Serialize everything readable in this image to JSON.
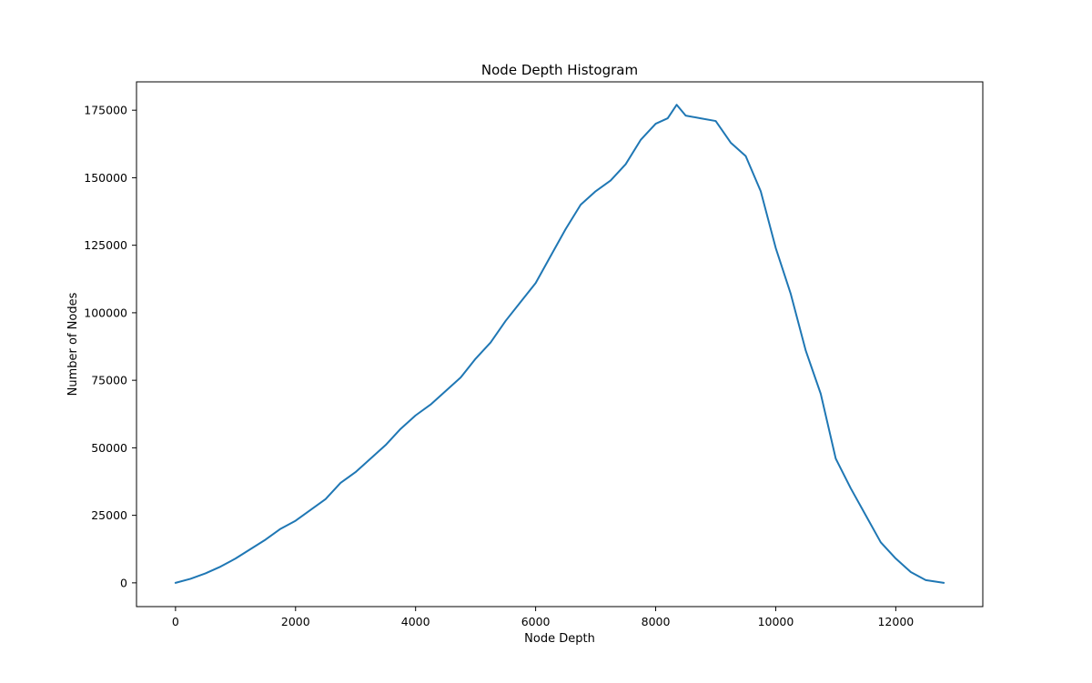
{
  "chart_data": {
    "type": "line",
    "title": "Node Depth Histogram",
    "xlabel": "Node Depth",
    "ylabel": "Number of Nodes",
    "xlim": [
      -650,
      13450
    ],
    "ylim": [
      -8800,
      185500
    ],
    "xticks": [
      0,
      2000,
      4000,
      6000,
      8000,
      10000,
      12000
    ],
    "yticks": [
      0,
      25000,
      50000,
      75000,
      100000,
      125000,
      150000,
      175000
    ],
    "grid": false,
    "legend": "none",
    "series": [
      {
        "color": "#1f77b4",
        "x": [
          0,
          250,
          500,
          750,
          1000,
          1250,
          1500,
          1750,
          2000,
          2250,
          2500,
          2750,
          3000,
          3250,
          3500,
          3750,
          4000,
          4250,
          4500,
          4750,
          5000,
          5250,
          5500,
          5750,
          6000,
          6250,
          6500,
          6750,
          7000,
          7250,
          7500,
          7750,
          8000,
          8200,
          8350,
          8500,
          8750,
          9000,
          9250,
          9500,
          9750,
          10000,
          10250,
          10500,
          10750,
          11000,
          11250,
          11500,
          11750,
          12000,
          12250,
          12500,
          12800
        ],
        "values": [
          0,
          1500,
          3500,
          6000,
          9000,
          12500,
          16000,
          20000,
          23000,
          27000,
          31000,
          37000,
          41000,
          46000,
          51000,
          57000,
          62000,
          66000,
          71000,
          76000,
          83000,
          89000,
          97000,
          104000,
          111000,
          121000,
          131000,
          140000,
          145000,
          149000,
          155000,
          164000,
          170000,
          172000,
          177000,
          173000,
          172000,
          171000,
          163000,
          158000,
          145000,
          124000,
          107000,
          86000,
          70000,
          46000,
          35000,
          25000,
          15000,
          9000,
          4000,
          1000,
          0
        ]
      }
    ]
  }
}
